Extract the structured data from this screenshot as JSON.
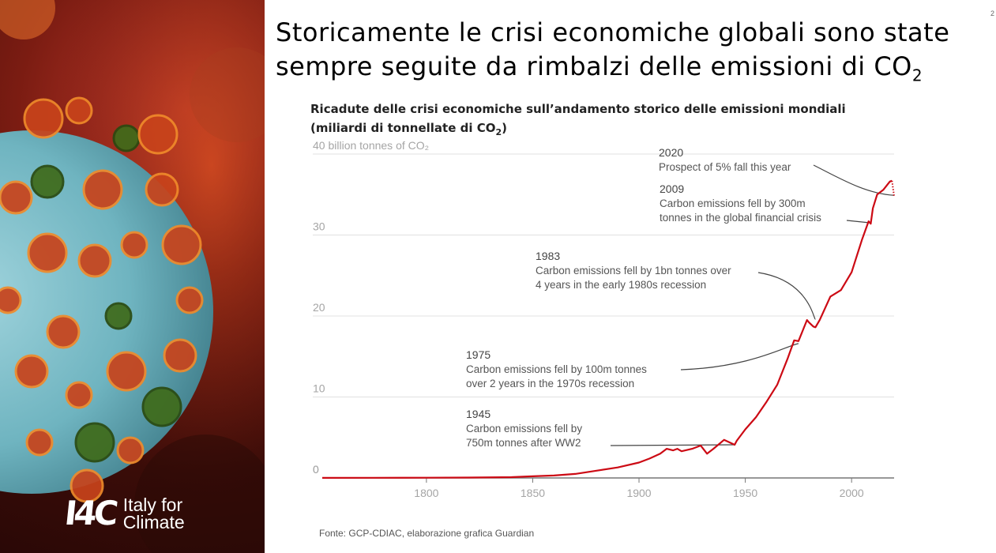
{
  "slide": {
    "title_line1": "Storicamente le crisi economiche globali sono state",
    "title_line2_pre": "sempre seguite da rimbalzi delle emissioni di CO",
    "title_sub": "2",
    "page_number": "2"
  },
  "brand": {
    "mark": "I4C",
    "line1": "Italy for",
    "line2": "Climate"
  },
  "chart_header": {
    "line1": "Ricadute delle crisi economiche sull’andamento storico delle emissioni mondiali",
    "line2_pre": "(miliardi di tonnellate di CO",
    "line2_sub": "2",
    "line2_post": ")"
  },
  "source": "Fonte: GCP-CDIAC, elaborazione grafica Guardian",
  "colors": {
    "line": "#cc0a14",
    "grid": "#e0e0e0",
    "axis": "#777777",
    "tick_text": "#a5a5a5",
    "annotation_text": "#555555",
    "leader": "#444444"
  },
  "chart_data": {
    "type": "line",
    "ylabel_top": "40 billion tonnes of CO₂",
    "xlim": [
      1751,
      2020
    ],
    "ylim": [
      0,
      40
    ],
    "y_ticks": [
      {
        "value": 40,
        "label": ""
      },
      {
        "value": 30,
        "label": "30"
      },
      {
        "value": 20,
        "label": "20"
      },
      {
        "value": 10,
        "label": "10"
      },
      {
        "value": 0,
        "label": "0"
      }
    ],
    "x_ticks": [
      1800,
      1850,
      1900,
      1950,
      2000
    ],
    "grid": true,
    "series": [
      {
        "name": "",
        "x": [
          1751,
          1775,
          1800,
          1820,
          1840,
          1850,
          1860,
          1870,
          1880,
          1890,
          1900,
          1905,
          1910,
          1913,
          1916,
          1918,
          1920,
          1925,
          1929,
          1932,
          1935,
          1940,
          1945,
          1946,
          1950,
          1955,
          1960,
          1965,
          1970,
          1973,
          1975,
          1977,
          1979,
          1980,
          1982,
          1983,
          1985,
          1990,
          1995,
          2000,
          2005,
          2008,
          2009,
          2010,
          2012,
          2015,
          2018,
          2019
        ],
        "y": [
          0.01,
          0.02,
          0.03,
          0.05,
          0.1,
          0.2,
          0.3,
          0.5,
          0.9,
          1.3,
          1.9,
          2.4,
          3.0,
          3.6,
          3.4,
          3.6,
          3.3,
          3.6,
          4.0,
          3.0,
          3.6,
          4.7,
          4.1,
          4.6,
          6.0,
          7.5,
          9.4,
          11.5,
          14.8,
          17.0,
          16.9,
          18.2,
          19.5,
          19.2,
          18.7,
          18.6,
          19.5,
          22.4,
          23.2,
          25.4,
          29.5,
          31.7,
          31.4,
          33.3,
          35.0,
          35.6,
          36.6,
          36.7
        ]
      }
    ],
    "projection": {
      "x": [
        2019,
        2020
      ],
      "y": [
        36.7,
        34.8
      ],
      "style": "dotted"
    },
    "annotations": [
      {
        "year": "2020",
        "text": [
          "Prospect of 5% fall this year"
        ],
        "target": [
          2020,
          34.9
        ]
      },
      {
        "year": "2009",
        "text": [
          "Carbon emissions fell by 300m",
          "tonnes in the global financial crisis"
        ],
        "target": [
          2009,
          31.5
        ]
      },
      {
        "year": "1983",
        "text": [
          "Carbon emissions fell by 1bn tonnes over",
          "4 years in the early 1980s recession"
        ],
        "target": [
          1983,
          19.6
        ]
      },
      {
        "year": "1975",
        "text": [
          "Carbon emissions fell by 100m tonnes",
          "over 2 years in the 1970s recession"
        ],
        "target": [
          1975,
          16.6
        ]
      },
      {
        "year": "1945",
        "text": [
          "Carbon emissions fell by",
          "750m tonnes after WW2"
        ],
        "target": [
          1945,
          4.1
        ]
      }
    ]
  }
}
